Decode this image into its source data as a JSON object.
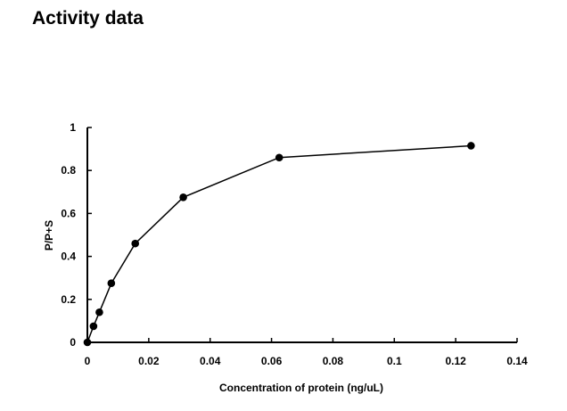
{
  "page": {
    "title": "Activity data"
  },
  "chart_data": {
    "type": "line",
    "title": "",
    "xlabel": "Concentration of protein (ng/uL)",
    "ylabel": "P/P+S",
    "xlim": [
      0,
      0.14
    ],
    "ylim": [
      0,
      1
    ],
    "x_ticks": [
      0,
      0.02,
      0.04,
      0.06,
      0.08,
      0.1,
      0.12,
      0.14
    ],
    "x_tick_labels": [
      "0",
      "0.02",
      "0.04",
      "0.06",
      "0.08",
      "0.1",
      "0.12",
      "0.14"
    ],
    "y_ticks": [
      0,
      0.2,
      0.4,
      0.6,
      0.8,
      1
    ],
    "y_tick_labels": [
      "0",
      "0.2",
      "0.4",
      "0.6",
      "0.8",
      "1"
    ],
    "grid": false,
    "legend": "none",
    "marker": "filled-circle",
    "series": [
      {
        "x": [
          0,
          0.002,
          0.0039,
          0.0078,
          0.0156,
          0.03125,
          0.0625,
          0.125
        ],
        "y": [
          0,
          0.075,
          0.14,
          0.275,
          0.46,
          0.675,
          0.86,
          0.915
        ],
        "color": "#000000"
      }
    ]
  }
}
